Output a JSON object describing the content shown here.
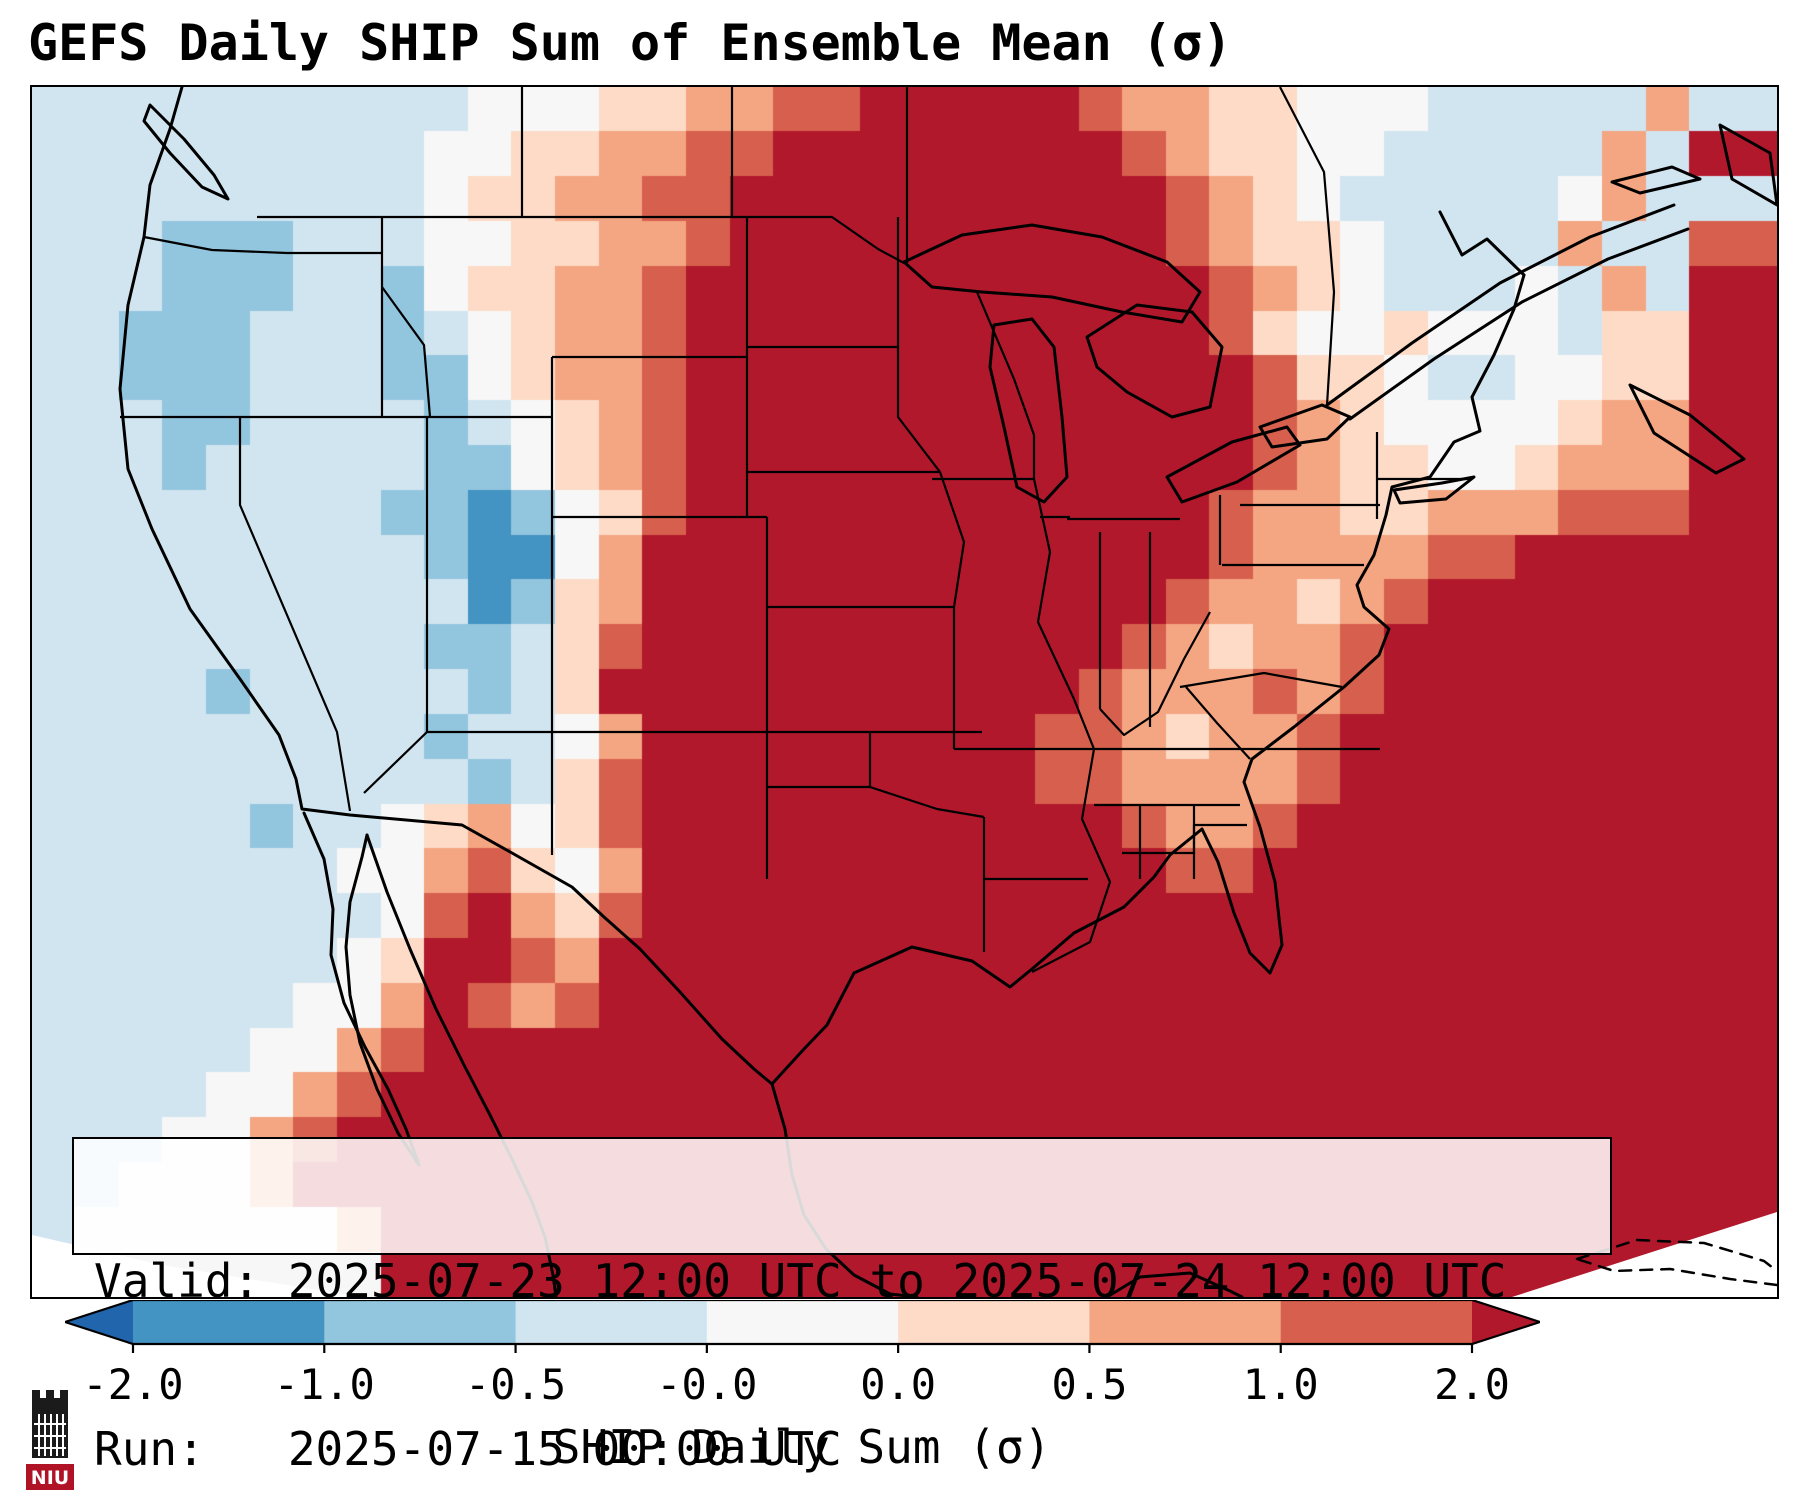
{
  "title": "GEFS Daily SHIP Sum of Ensemble Mean (σ)",
  "annotation": {
    "line1": "Valid: 2025-07-23 12:00 UTC to 2025-07-24 12:00 UTC",
    "line2": "Run:   2025-07-15 00:00 UTC"
  },
  "logo": {
    "text": "NIU",
    "color": "#b01326"
  },
  "chart_data": {
    "type": "heatmap",
    "title": "GEFS Daily SHIP Sum of Ensemble Mean (σ)",
    "variable": "SHIP Daily Sum (σ)",
    "valid_period": "2025-07-23 12:00 UTC to 2025-07-24 12:00 UTC",
    "run": "2025-07-15 00:00 UTC",
    "region": "Continental United States, southern Canada, Mexico, Gulf of Mexico, western Atlantic",
    "colorbar": {
      "label": "SHIP Daily Sum (σ)",
      "tick_labels": [
        "-2.0",
        "-1.0",
        "-0.5",
        "-0.0",
        "0.0",
        "0.5",
        "1.0",
        "2.0"
      ],
      "tick_values": [
        -2.0,
        -1.0,
        -0.5,
        -0.0,
        0.0,
        0.5,
        1.0,
        2.0
      ],
      "extend": "both",
      "segment_colors": [
        "#4393c3",
        "#92c5de",
        "#d1e5f0",
        "#f7f7f7",
        "#fddbc7",
        "#f4a582",
        "#d6604d"
      ],
      "extend_colors": [
        "#2166ac",
        "#b2182b"
      ]
    },
    "grid": {
      "cols": 40,
      "rows": 27,
      "units": "sigma",
      "levels": {
        "0": -2.0,
        "1": -1.0,
        "2": -0.5,
        "3": -0.2,
        "4": 0.0,
        "5": 0.25,
        "6": 0.5,
        "7": 1.0,
        "8": 2.0
      },
      "palette": {
        "0": "#2166ac",
        "1": "#4393c3",
        "2": "#92c5de",
        "3": "#d1e5f0",
        "4": "#f7f7f7",
        "5": "#fddbc7",
        "6": "#f4a582",
        "7": "#d6604d",
        "8": "#b2182b"
      },
      "rows_rle": [
        "3333333333444556677888887665544433333633",
        "3333333334455667788888888765544333336388",
        "3333333334556677888888888876543333346333",
        "3332223334455667888888888876554333363377",
        "3332223324556678888888888887654333436388",
        "3322233323456678888888888887544544435588",
        "3322233322456678888888888888755433445588",
        "3332233332345678888888888888765444456688",
        "3332333332245678888888888888765544566688",
        "3333333322124578888888888887665566677788",
        "3333333332114688888888888887666677888888",
        "3333333333125688888888888876656788888888",
        "3333333332235788888888888765667888888888",
        "3333233333235888888888887666767888888888",
        "3333333332334688888888877656678888888888",
        "3333333333235788888888877666678888888888",
        "3333323345645788888888888766788888888888",
        "3333333446754688888888888877888888888888",
        "3333333347865788888888888888888888888888",
        "3333333458876888888888888888888888888888",
        "3333334468767888888888888888888888888888",
        "3333344678888888888888888888888888888888",
        "3333446788888888888888888888888888888888",
        "3334467888888888888888888888888888888888",
        "3344468888888888888888888888888888888888",
        "3444444688888888888888888888888888888888",
        "4444444488888888888888888888888888888888"
      ]
    }
  }
}
